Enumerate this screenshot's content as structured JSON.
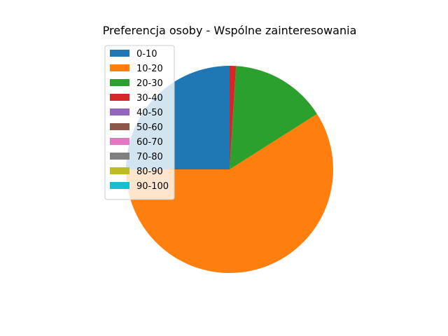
{
  "chart_data": {
    "type": "pie",
    "title": "Preferencja osoby - Wspólne zainteresowania",
    "categories": [
      "0-10",
      "10-20",
      "20-30",
      "30-40",
      "40-50",
      "50-60",
      "60-70",
      "70-80",
      "80-90",
      "90-100"
    ],
    "values": [
      25.0,
      59.0,
      15.0,
      1.0,
      0,
      0,
      0,
      0,
      0,
      0
    ],
    "colors": [
      "#1f77b4",
      "#ff7f0e",
      "#2ca02c",
      "#d62728",
      "#9467bd",
      "#8c564b",
      "#e377c2",
      "#7f7f7f",
      "#bcbd22",
      "#17becf"
    ],
    "start_angle_deg": 90,
    "direction": "counterclockwise",
    "legend_position": "upper-left"
  }
}
